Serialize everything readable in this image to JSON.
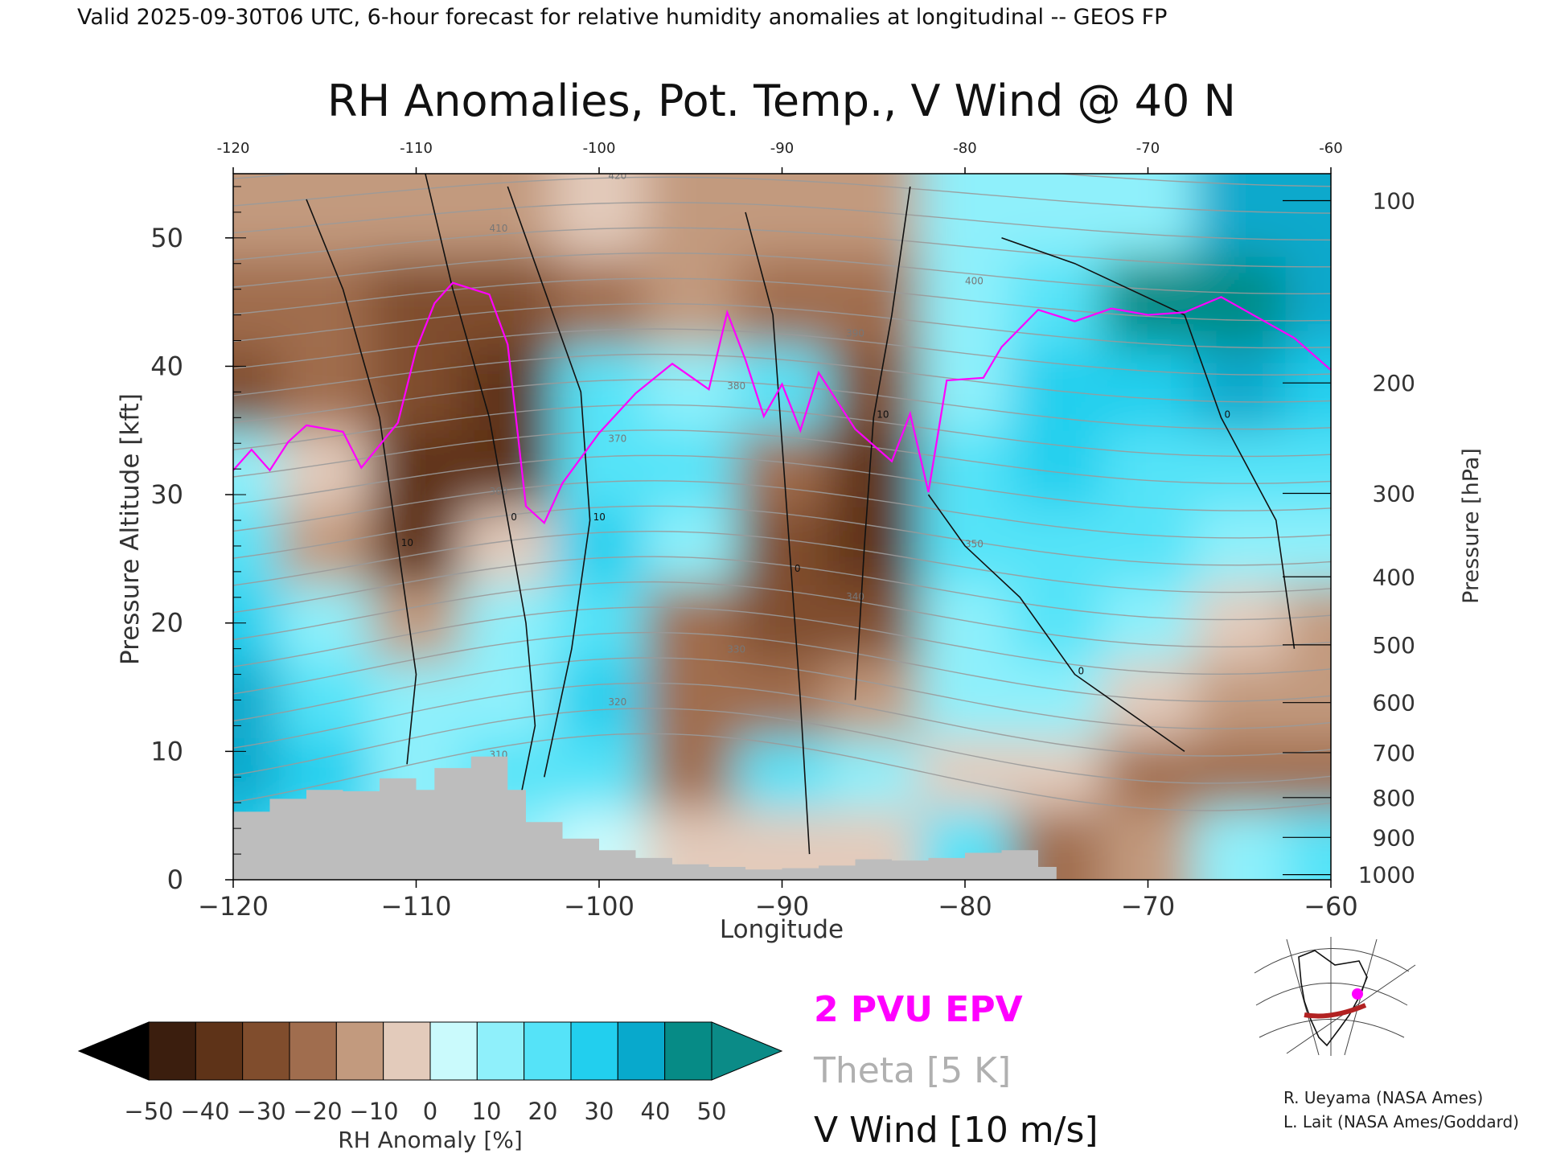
{
  "header": "Valid 2025-09-30T06 UTC, 6-hour forecast for relative humidity anomalies at longitudinal -- GEOS FP",
  "chart_data": {
    "type": "heatmap",
    "title": "RH Anomalies, Pot. Temp., V Wind @ 40 N",
    "xlabel": "Longitude",
    "ylabel": "Pressure Altitude [kft]",
    "y2label": "Pressure [hPa]",
    "xlim": [
      -120,
      -60
    ],
    "ylim": [
      0,
      55
    ],
    "x_ticks": [
      "-120",
      "-110",
      "-100",
      "-90",
      "-80",
      "-70",
      "-60"
    ],
    "x_ticks_bottom": [
      "−120",
      "−110",
      "−100",
      "−90",
      "−80",
      "−70",
      "−60"
    ],
    "x_tick_values": [
      -120,
      -110,
      -100,
      -90,
      -80,
      -70,
      -60
    ],
    "y_ticks": [
      0,
      10,
      20,
      30,
      40,
      50
    ],
    "y2_ticks": [
      {
        "label": "100",
        "kft": 52.9
      },
      {
        "label": "200",
        "kft": 38.7
      },
      {
        "label": "300",
        "kft": 30.1
      },
      {
        "label": "400",
        "kft": 23.6
      },
      {
        "label": "500",
        "kft": 18.3
      },
      {
        "label": "600",
        "kft": 13.8
      },
      {
        "label": "700",
        "kft": 9.9
      },
      {
        "label": "800",
        "kft": 6.4
      },
      {
        "label": "900",
        "kft": 3.3
      },
      {
        "label": "1000",
        "kft": 0.4
      }
    ],
    "rh_anomaly_field": {
      "longitude": [
        -120,
        -115,
        -110,
        -105,
        -100,
        -95,
        -90,
        -85,
        -80,
        -75,
        -70,
        -65,
        -60
      ],
      "altitude_kft": [
        52,
        45,
        38,
        32,
        26,
        20,
        14,
        8,
        3
      ],
      "values": [
        [
          -15,
          -15,
          -20,
          -15,
          -10,
          -15,
          -20,
          -20,
          10,
          10,
          15,
          40,
          40
        ],
        [
          -30,
          -30,
          -40,
          -40,
          -30,
          -20,
          -30,
          -30,
          15,
          20,
          50,
          50,
          45
        ],
        [
          -35,
          -30,
          -40,
          -45,
          20,
          15,
          20,
          -35,
          10,
          30,
          30,
          40,
          30
        ],
        [
          15,
          -10,
          -50,
          -45,
          25,
          20,
          -30,
          -50,
          20,
          30,
          20,
          20,
          20
        ],
        [
          20,
          -20,
          -45,
          -10,
          30,
          10,
          -40,
          -45,
          20,
          25,
          20,
          15,
          10
        ],
        [
          35,
          10,
          -15,
          10,
          20,
          -30,
          -40,
          -35,
          10,
          20,
          10,
          -10,
          -15
        ],
        [
          40,
          20,
          10,
          15,
          30,
          -30,
          -25,
          -20,
          15,
          10,
          -10,
          -15,
          -20
        ],
        [
          45,
          30,
          15,
          20,
          20,
          -25,
          20,
          10,
          -5,
          -10,
          -25,
          -25,
          -30
        ],
        [
          30,
          20,
          10,
          10,
          5,
          -10,
          -5,
          -5,
          20,
          -30,
          -20,
          10,
          20
        ]
      ]
    },
    "terrain_kft": [
      {
        "lon": -120,
        "kft": 5.3
      },
      {
        "lon": -118,
        "kft": 6.3
      },
      {
        "lon": -116,
        "kft": 7.0
      },
      {
        "lon": -114,
        "kft": 6.9
      },
      {
        "lon": -112,
        "kft": 7.9
      },
      {
        "lon": -110,
        "kft": 7.0
      },
      {
        "lon": -109,
        "kft": 8.7
      },
      {
        "lon": -107,
        "kft": 9.6
      },
      {
        "lon": -105,
        "kft": 7.0
      },
      {
        "lon": -104,
        "kft": 4.5
      },
      {
        "lon": -102,
        "kft": 3.2
      },
      {
        "lon": -100,
        "kft": 2.3
      },
      {
        "lon": -98,
        "kft": 1.7
      },
      {
        "lon": -96,
        "kft": 1.2
      },
      {
        "lon": -94,
        "kft": 1.0
      },
      {
        "lon": -92,
        "kft": 0.8
      },
      {
        "lon": -90,
        "kft": 0.9
      },
      {
        "lon": -88,
        "kft": 1.1
      },
      {
        "lon": -86,
        "kft": 1.6
      },
      {
        "lon": -84,
        "kft": 1.5
      },
      {
        "lon": -82,
        "kft": 1.7
      },
      {
        "lon": -80,
        "kft": 2.1
      },
      {
        "lon": -78,
        "kft": 2.3
      },
      {
        "lon": -76,
        "kft": 1.0
      },
      {
        "lon": -75,
        "kft": 0.0
      }
    ],
    "epv_2pvu": [
      {
        "lon": -120,
        "kft": 31.9
      },
      {
        "lon": -119,
        "kft": 33.5
      },
      {
        "lon": -118,
        "kft": 31.9
      },
      {
        "lon": -117,
        "kft": 34.1
      },
      {
        "lon": -116,
        "kft": 35.4
      },
      {
        "lon": -114,
        "kft": 34.9
      },
      {
        "lon": -113,
        "kft": 32.1
      },
      {
        "lon": -111,
        "kft": 35.6
      },
      {
        "lon": -110,
        "kft": 41.3
      },
      {
        "lon": -109,
        "kft": 44.9
      },
      {
        "lon": -108,
        "kft": 46.5
      },
      {
        "lon": -106,
        "kft": 45.6
      },
      {
        "lon": -105,
        "kft": 41.7
      },
      {
        "lon": -104,
        "kft": 29.1
      },
      {
        "lon": -103,
        "kft": 27.8
      },
      {
        "lon": -102,
        "kft": 30.9
      },
      {
        "lon": -100,
        "kft": 34.8
      },
      {
        "lon": -98,
        "kft": 37.9
      },
      {
        "lon": -96,
        "kft": 40.2
      },
      {
        "lon": -94,
        "kft": 38.2
      },
      {
        "lon": -93,
        "kft": 44.2
      },
      {
        "lon": -92,
        "kft": 40.5
      },
      {
        "lon": -91,
        "kft": 36.1
      },
      {
        "lon": -90,
        "kft": 38.6
      },
      {
        "lon": -89,
        "kft": 35.0
      },
      {
        "lon": -88,
        "kft": 39.5
      },
      {
        "lon": -86,
        "kft": 35.1
      },
      {
        "lon": -84,
        "kft": 32.6
      },
      {
        "lon": -83,
        "kft": 36.3
      },
      {
        "lon": -82,
        "kft": 30.2
      },
      {
        "lon": -81,
        "kft": 38.9
      },
      {
        "lon": -79,
        "kft": 39.1
      },
      {
        "lon": -78,
        "kft": 41.5
      },
      {
        "lon": -76,
        "kft": 44.4
      },
      {
        "lon": -74,
        "kft": 43.5
      },
      {
        "lon": -72,
        "kft": 44.5
      },
      {
        "lon": -70,
        "kft": 44.0
      },
      {
        "lon": -68,
        "kft": 44.2
      },
      {
        "lon": -66,
        "kft": 45.4
      },
      {
        "lon": -64,
        "kft": 43.8
      },
      {
        "lon": -62,
        "kft": 42.2
      },
      {
        "lon": -60,
        "kft": 39.7
      }
    ],
    "v_wind_contours": [
      {
        "label": "10",
        "points": [
          [
            -116,
            53
          ],
          [
            -114,
            46
          ],
          [
            -112,
            36
          ],
          [
            -111,
            26
          ],
          [
            -110,
            16
          ],
          [
            -110.5,
            9
          ]
        ]
      },
      {
        "label": "0",
        "points": [
          [
            -109.5,
            55
          ],
          [
            -108,
            46
          ],
          [
            -106,
            36
          ],
          [
            -105,
            28
          ],
          [
            -104,
            20
          ],
          [
            -103.5,
            12
          ],
          [
            -104.5,
            5
          ]
        ]
      },
      {
        "label": "10",
        "points": [
          [
            -105,
            54
          ],
          [
            -103,
            46
          ],
          [
            -101,
            38
          ],
          [
            -100.5,
            28
          ],
          [
            -101.5,
            18
          ],
          [
            -103,
            8
          ]
        ]
      },
      {
        "label": "0",
        "points": [
          [
            -92,
            52
          ],
          [
            -90.5,
            44
          ],
          [
            -90,
            34
          ],
          [
            -89.5,
            24
          ],
          [
            -89,
            14
          ],
          [
            -88.5,
            2
          ]
        ]
      },
      {
        "label": "10",
        "points": [
          [
            -83,
            54
          ],
          [
            -84,
            44
          ],
          [
            -85,
            36
          ],
          [
            -85.5,
            26
          ],
          [
            -86,
            14
          ]
        ]
      },
      {
        "label": "0",
        "points": [
          [
            -78,
            50
          ],
          [
            -74,
            48
          ],
          [
            -68,
            44
          ],
          [
            -66,
            36
          ],
          [
            -63,
            28
          ],
          [
            -62,
            18
          ]
        ]
      },
      {
        "label": "0",
        "points": [
          [
            -82,
            30
          ],
          [
            -80,
            26
          ],
          [
            -77,
            22
          ],
          [
            -74,
            16
          ],
          [
            -71,
            13
          ],
          [
            -68,
            10
          ]
        ]
      }
    ],
    "theta_levels": [
      "310",
      "320",
      "330",
      "340",
      "350",
      "360",
      "370",
      "380",
      "390",
      "400",
      "410",
      "420"
    ],
    "colorbar": {
      "label": "RH Anomaly [%]",
      "ticks": [
        "−50",
        "−40",
        "−30",
        "−20",
        "−10",
        "0",
        "10",
        "20",
        "30",
        "40",
        "50"
      ],
      "colors": [
        "#3b1e0e",
        "#5e3318",
        "#804d2d",
        "#a06d4e",
        "#c29a7e",
        "#e3cbbb",
        "#cafafc",
        "#8ff0fb",
        "#55e3f8",
        "#22cfee",
        "#08a9cc",
        "#068b86"
      ],
      "under_color": "#000000",
      "over_color": "#0b8b87"
    },
    "legend": [
      {
        "label": "2 PVU EPV",
        "color": "#ff00ff"
      },
      {
        "label": "Theta [5 K]",
        "color": "#aaaaaa"
      },
      {
        "label": "V Wind [10 m/s]",
        "color": "#111111"
      }
    ]
  },
  "credits": [
    "R. Ueyama (NASA Ames)",
    "L. Lait (NASA Ames/Goddard)"
  ]
}
